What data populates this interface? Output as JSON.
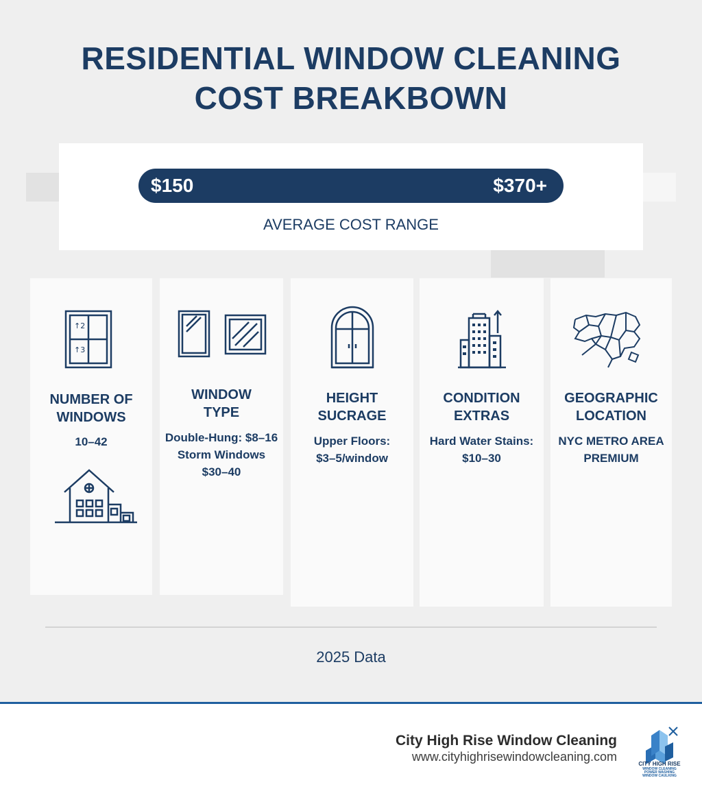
{
  "title": {
    "line1": "RESIDENTIAL WINDOW CLEANING",
    "line2": "COST BREAKBOWN"
  },
  "range": {
    "low": "$150",
    "high": "$370+",
    "label": "AVERAGE COST RANGE"
  },
  "cards": [
    {
      "title": [
        "NUMBER OF",
        "WINDOWS"
      ],
      "value": [
        "10–42"
      ],
      "icon": "window-pane-icon",
      "icon2": "house-icon"
    },
    {
      "title": [
        "WINDOW",
        "TYPE"
      ],
      "value": [
        "Double-Hung: $8–16",
        "Storm Windows",
        "$30–40"
      ],
      "icon": "window-types-icon"
    },
    {
      "title": [
        "HEIGHT",
        "SUCRAGE"
      ],
      "value": [
        "Upper Floors:",
        "$3–5/window"
      ],
      "icon": "arched-window-icon"
    },
    {
      "title": [
        "CONDITION",
        "EXTRAS"
      ],
      "value": [
        "Hard Water Stains:",
        "$10–30"
      ],
      "icon": "building-icon"
    },
    {
      "title": [
        "GEOGRAPHIC",
        "LOCATION"
      ],
      "value": [
        "NYC METRO AREA",
        "PREMIUM"
      ],
      "icon": "map-icon"
    }
  ],
  "year_note": "2025 Data",
  "footer": {
    "company": "City High Rise Window Cleaning",
    "url": "www.cityhighrisewindowcleaning.com",
    "logo_text": [
      "CITY HIGH RISE",
      "WINDOW CLEANING",
      "POWER WASHING",
      "WINDOW CAULKING"
    ]
  },
  "colors": {
    "navy": "#1c3c63",
    "footer_rule": "#1f5f9f",
    "background": "#efefef"
  }
}
